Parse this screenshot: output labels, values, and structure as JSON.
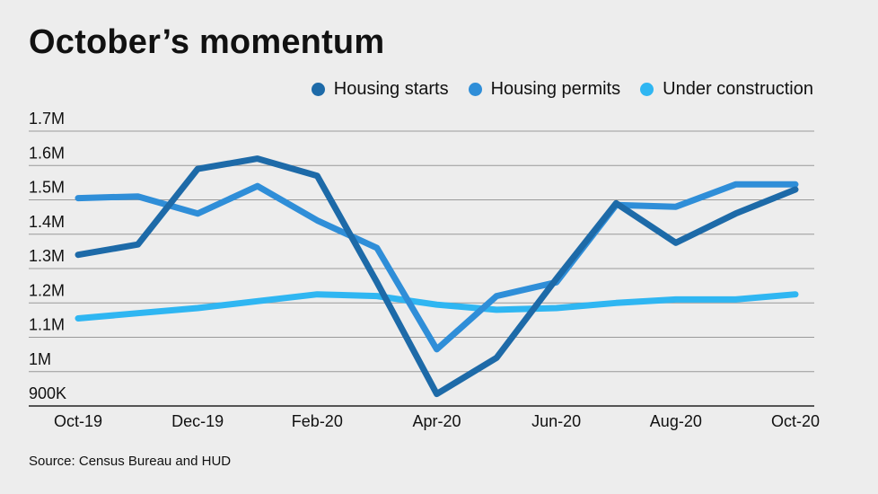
{
  "chart_data": {
    "type": "line",
    "title": "October’s momentum",
    "xlabel": "",
    "ylabel": "",
    "x": [
      "Oct-19",
      "Nov-19",
      "Dec-19",
      "Jan-20",
      "Feb-20",
      "Mar-20",
      "Apr-20",
      "May-20",
      "Jun-20",
      "Jul-20",
      "Aug-20",
      "Sep-20",
      "Oct-20"
    ],
    "x_tick_labels": [
      "Oct-19",
      "Dec-19",
      "Feb-20",
      "Apr-20",
      "Jun-20",
      "Aug-20",
      "Oct-20"
    ],
    "x_tick_indices": [
      0,
      2,
      4,
      6,
      8,
      10,
      12
    ],
    "y_ticks": [
      900000,
      1000000,
      1100000,
      1200000,
      1300000,
      1400000,
      1500000,
      1600000,
      1700000
    ],
    "y_tick_labels": [
      "900K",
      "1M",
      "1.1M",
      "1.2M",
      "1.3M",
      "1.4M",
      "1.5M",
      "1.6M",
      "1.7M"
    ],
    "ylim": [
      900000,
      1700000
    ],
    "grid": true,
    "legend_position": "top-right",
    "series": [
      {
        "name": "Housing starts",
        "color": "#1d6aa8",
        "values": [
          1340000,
          1370000,
          1590000,
          1620000,
          1570000,
          1260000,
          935000,
          1040000,
          1270000,
          1490000,
          1375000,
          1460000,
          1530000
        ]
      },
      {
        "name": "Housing permits",
        "color": "#2f8ed8",
        "values": [
          1505000,
          1510000,
          1460000,
          1540000,
          1440000,
          1360000,
          1065000,
          1220000,
          1260000,
          1485000,
          1480000,
          1545000,
          1545000
        ]
      },
      {
        "name": "Under construction",
        "color": "#2fb6f2",
        "values": [
          1155000,
          1170000,
          1185000,
          1205000,
          1225000,
          1220000,
          1195000,
          1180000,
          1185000,
          1200000,
          1210000,
          1210000,
          1225000
        ]
      }
    ]
  },
  "source": "Source: Census Bureau and HUD"
}
